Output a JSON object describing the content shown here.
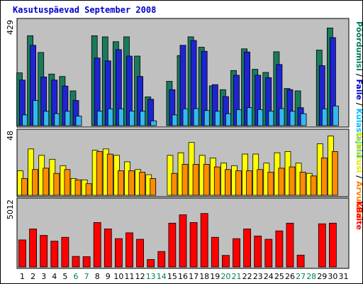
{
  "chart_data": {
    "type": "bar",
    "title": "Kasutuspäevad September 2008",
    "categories": [
      "1",
      "2",
      "3",
      "4",
      "5",
      "6",
      "7",
      "8",
      "9",
      "10",
      "11",
      "12",
      "13",
      "14",
      "15",
      "16",
      "17",
      "18",
      "19",
      "20",
      "21",
      "22",
      "23",
      "24",
      "25",
      "26",
      "27",
      "28",
      "29",
      "30",
      "31"
    ],
    "weekend_days": [
      "6",
      "7",
      "13",
      "14",
      "20",
      "21",
      "27",
      "28"
    ],
    "panels": [
      {
        "key": "pages",
        "ymax_label": "429",
        "ymax": 429,
        "labels": [
          {
            "text": "Pöördumisi",
            "color": "#007f5f"
          },
          {
            "text": " / ",
            "color": "#000000"
          },
          {
            "text": "Faile",
            "color": "#0000cc"
          },
          {
            "text": " / ",
            "color": "#000000"
          },
          {
            "text": "Külastajaid",
            "color": "#00bfff"
          }
        ],
        "series": [
          {
            "name": "Pöördumisi",
            "color": "#1a7a5e",
            "values": [
              220,
              375,
              305,
              215,
              205,
              145,
              0,
              375,
              370,
              350,
              370,
              290,
              120,
              0,
              185,
              292,
              370,
              327,
              166,
              150,
              230,
              320,
              235,
              222,
              308,
              155,
              145,
              0,
              315,
              407,
              0
            ]
          },
          {
            "name": "Faile",
            "color": "#1f24d3",
            "values": [
              190,
              335,
              203,
              190,
              165,
              105,
              0,
              282,
              270,
              317,
              290,
              205,
              110,
              0,
              150,
              335,
              355,
              310,
              171,
              121,
              210,
              307,
              210,
              200,
              255,
              150,
              75,
              0,
              250,
              367,
              0
            ]
          },
          {
            "name": "Külastajaid",
            "color": "#35b8ef",
            "values": [
              45,
              105,
              60,
              50,
              60,
              40,
              0,
              61,
              70,
              70,
              61,
              60,
              20,
              0,
              45,
              70,
              71,
              63,
              60,
              50,
              67,
              75,
              67,
              61,
              71,
              60,
              50,
              0,
              70,
              82,
              0
            ]
          }
        ]
      },
      {
        "key": "visits",
        "ymax_label": "48",
        "ymax": 48,
        "labels": [
          {
            "text": "Külastusi",
            "color": "#e8e800"
          },
          {
            "text": " / ",
            "color": "#000000"
          },
          {
            "text": "Arvuteid",
            "color": "#ff8000"
          }
        ],
        "series": [
          {
            "name": "Külastusi",
            "color": "#ffff00",
            "values": [
              19,
              36,
              31,
              28,
              23,
              13,
              12,
              35,
              36,
              31,
              26,
              20,
              16,
              0,
              31,
              33,
              41,
              31,
              29,
              25,
              23,
              32,
              32,
              25,
              33,
              34,
              25,
              17,
              40,
              46,
              0
            ]
          },
          {
            "name": "Arvuteid",
            "color": "#ff8c00",
            "values": [
              13,
              20,
              21,
              17,
              20,
              12,
              9,
              34,
              32,
              19,
              19,
              18,
              13,
              0,
              17,
              24,
              24,
              24,
              22,
              20,
              19,
              19,
              20,
              18,
              21,
              22,
              18,
              15,
              29,
              34,
              0
            ]
          }
        ]
      },
      {
        "key": "bytes",
        "ymax_label": "5012",
        "ymax": 5012,
        "labels": [
          {
            "text": "KBaite",
            "color": "#ff0000"
          }
        ],
        "series": [
          {
            "name": "KBaite",
            "color": "#ff0000",
            "values": [
              2100,
              2950,
              2450,
              2000,
              2300,
              820,
              800,
              3450,
              2950,
              2200,
              2650,
              2150,
              580,
              1200,
              3400,
              4050,
              3450,
              4150,
              2300,
              900,
              2200,
              2950,
              2400,
              2150,
              2800,
              3400,
              920,
              0,
              3350,
              3400,
              0
            ]
          }
        ]
      }
    ]
  }
}
